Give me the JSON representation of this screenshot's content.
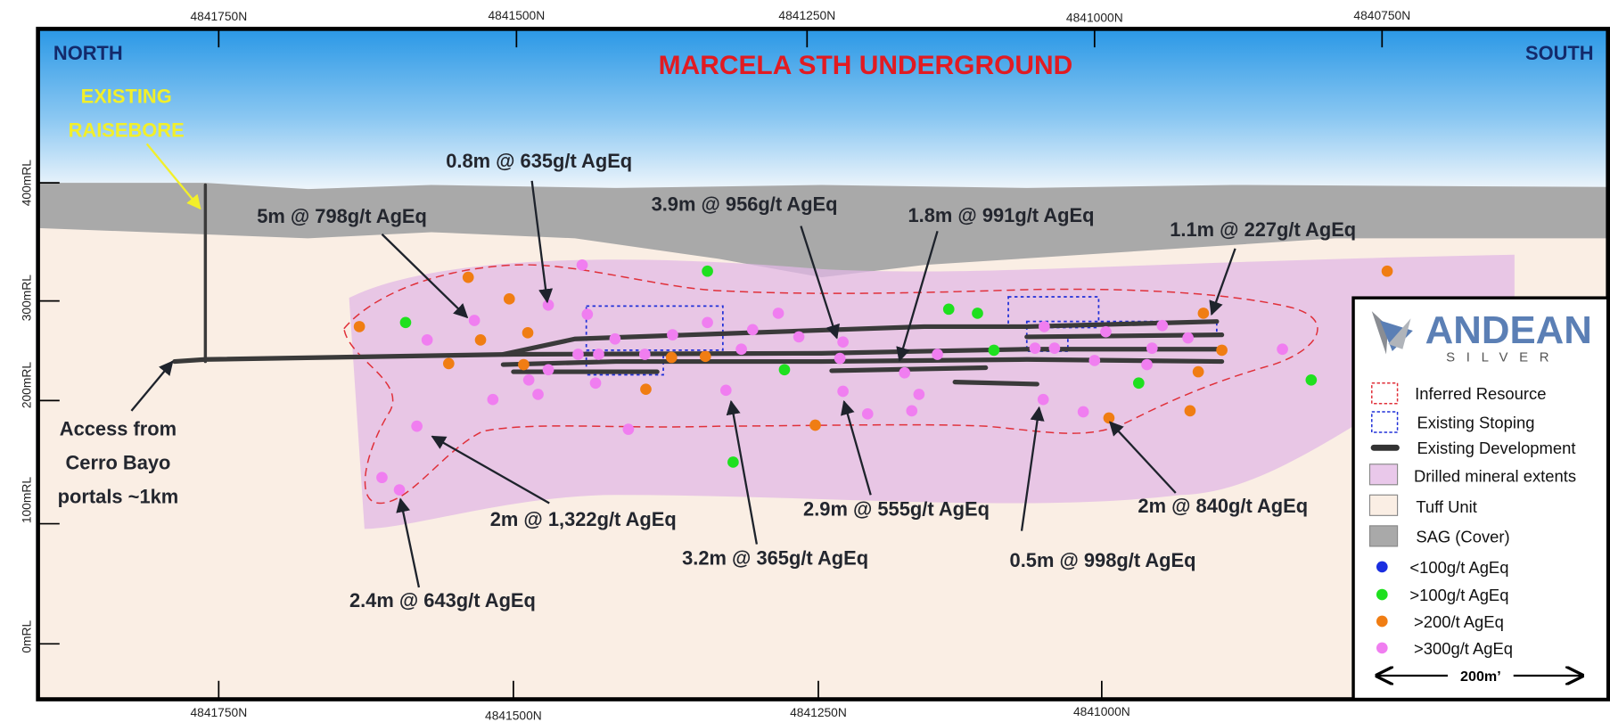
{
  "title": "MARCELA STH UNDERGROUND",
  "corner_labels": {
    "north": "NORTH",
    "south": "SOUTH"
  },
  "top_eastings": [
    "4841750N",
    "4841500N",
    "4841250N",
    "4841000N",
    "4840750N"
  ],
  "bottom_eastings": [
    "4841750N",
    "4841500N",
    "4841250N",
    "4841000N"
  ],
  "elevations": [
    "400mRL",
    "300mRL",
    "200mRL",
    "100mRL",
    "0mRL"
  ],
  "callouts": {
    "raisebore": [
      "EXISTING",
      "RAISEBORE"
    ],
    "access": [
      "Access from",
      "Cerro Bayo",
      "portals ~1km"
    ]
  },
  "intercepts": [
    "0.8m @ 635g/t AgEq",
    "5m @ 798g/t AgEq",
    "3.9m @ 956g/t AgEq",
    "1.8m @ 991g/t AgEq",
    "1.1m @ 227g/t AgEq",
    "2m @ 1,322g/t AgEq",
    "2.4m @ 643g/t AgEq",
    "3.2m @ 365g/t AgEq",
    "2.9m @ 555g/t AgEq",
    "0.5m @ 998g/t AgEq",
    "2m @ 840g/t AgEq"
  ],
  "legend": {
    "brand": "ANDEAN",
    "brand_sub": "SILVER",
    "items": [
      "Inferred Resource",
      "Existing Stoping",
      "Existing Development",
      "Drilled mineral extents",
      "Tuff Unit",
      "SAG (Cover)",
      "<100g/t AgEq",
      ">100g/t AgEq",
      ">200/t AgEq",
      ">300g/t AgEq"
    ],
    "scale": "200m’"
  }
}
